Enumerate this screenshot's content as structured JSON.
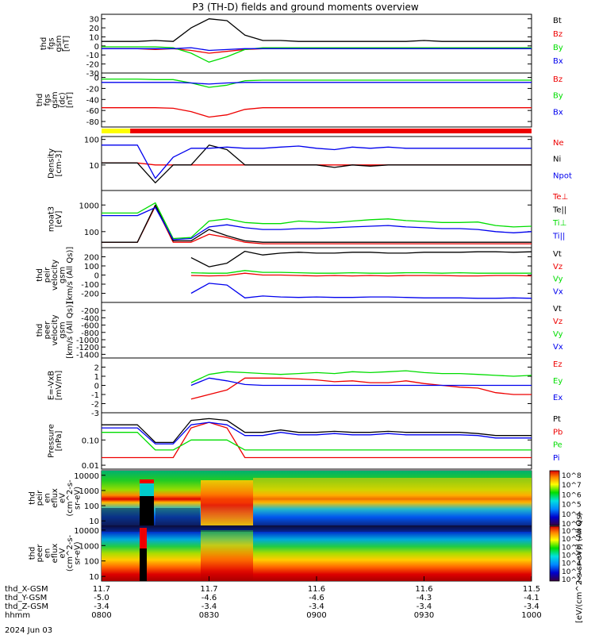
{
  "title": "P3 (TH-D) fields and ground moments overview",
  "date_label": "2024 Jun 03",
  "colors": {
    "black": "#000000",
    "red": "#ee0000",
    "green": "#00dd00",
    "blue": "#0000ee",
    "yellow": "#ffff00"
  },
  "x_axis": {
    "rows": [
      {
        "label": "thd_X-GSM",
        "values": [
          "11.7",
          "11.7",
          "11.6",
          "11.6",
          "11.5"
        ]
      },
      {
        "label": "thd_Y-GSM",
        "values": [
          "-5.0",
          "-4.6",
          "-4.6",
          "-4.3",
          "-4.1"
        ]
      },
      {
        "label": "thd_Z-GSM",
        "values": [
          "-3.4",
          "-3.4",
          "-3.4",
          "-3.4",
          "-3.4"
        ]
      },
      {
        "label": "hhmm",
        "values": [
          "0800",
          "0830",
          "0900",
          "0930",
          "1000"
        ]
      }
    ],
    "time_range": [
      "0800",
      "1000"
    ]
  },
  "status_bar": {
    "segments": [
      {
        "start": "0800",
        "end": "0808",
        "color": "yellow"
      },
      {
        "start": "0808",
        "end": "1000",
        "color": "red"
      }
    ]
  },
  "colorbar": {
    "label": "[eV/(cm^2-s-sr-eV)] (All Qs)",
    "panel1_ticks": [
      "10^8",
      "10^7",
      "10^6",
      "10^5",
      "10^4",
      "10^3"
    ],
    "panel2_ticks": [
      "10^8",
      "10^7",
      "10^6",
      "10^5",
      "10^4",
      "10^3",
      "10^2"
    ]
  },
  "chart_data": [
    {
      "type": "line",
      "ylabel_lines": [
        "thd",
        "fgs",
        "gsm",
        "[nT]"
      ],
      "ylim": [
        -30,
        35
      ],
      "ticks": [
        "30",
        "20",
        "10",
        "0",
        "-10",
        "-20",
        "-30"
      ],
      "series": [
        {
          "name": "Bt",
          "color": "black",
          "values": [
            5,
            5,
            5,
            6,
            5,
            20,
            30,
            28,
            12,
            6,
            6,
            5,
            5,
            5,
            5,
            5,
            5,
            5,
            6,
            5,
            5,
            5,
            5,
            5,
            5
          ]
        },
        {
          "name": "Bz",
          "color": "red",
          "values": [
            -3,
            -3,
            -3,
            -4,
            -3,
            -5,
            -8,
            -6,
            -4,
            -3,
            -3,
            -3,
            -3,
            -3,
            -3,
            -3,
            -3,
            -3,
            -3,
            -3,
            -3,
            -3,
            -3,
            -3,
            -3
          ]
        },
        {
          "name": "By",
          "color": "green",
          "values": [
            -1,
            -1,
            -1,
            -1,
            -2,
            -8,
            -18,
            -12,
            -4,
            -2,
            -2,
            -2,
            -2,
            -2,
            -2,
            -2,
            -2,
            -2,
            -2,
            -2,
            -2,
            -2,
            -2,
            -2,
            -2
          ]
        },
        {
          "name": "Bx",
          "color": "blue",
          "values": [
            -3,
            -3,
            -3,
            -3,
            -3,
            -2,
            -5,
            -4,
            -3,
            -3,
            -3,
            -3,
            -3,
            -3,
            -3,
            -3,
            -3,
            -3,
            -3,
            -3,
            -3,
            -3,
            -3,
            -3,
            -3
          ]
        }
      ]
    },
    {
      "type": "line",
      "ylabel_lines": [
        "thd",
        "fgs",
        "gsm",
        "(dc)",
        "[nT]"
      ],
      "ylim": [
        -90,
        8
      ],
      "ticks": [
        "0",
        "-20",
        "-40",
        "-60",
        "-80"
      ],
      "series": [
        {
          "name": "Bz",
          "color": "red",
          "values": [
            -55,
            -55,
            -55,
            -55,
            -56,
            -62,
            -72,
            -68,
            -58,
            -55,
            -55,
            -55,
            -55,
            -55,
            -55,
            -55,
            -55,
            -55,
            -55,
            -55,
            -55,
            -55,
            -55,
            -55,
            -55
          ]
        },
        {
          "name": "By",
          "color": "green",
          "values": [
            -3,
            -3,
            -3,
            -4,
            -4,
            -10,
            -18,
            -14,
            -6,
            -5,
            -5,
            -5,
            -5,
            -5,
            -5,
            -5,
            -5,
            -5,
            -5,
            -5,
            -5,
            -5,
            -5,
            -5,
            -5
          ]
        },
        {
          "name": "Bx",
          "color": "blue",
          "values": [
            -9,
            -9,
            -9,
            -9,
            -9,
            -10,
            -12,
            -10,
            -9,
            -9,
            -9,
            -9,
            -9,
            -9,
            -9,
            -9,
            -9,
            -9,
            -9,
            -9,
            -9,
            -9,
            -9,
            -9,
            -9
          ]
        }
      ]
    },
    {
      "type": "line",
      "log": true,
      "ylabel_lines": [
        "Density",
        "[cm-3]"
      ],
      "ylim": [
        1,
        130
      ],
      "ticks": [
        "100",
        "10"
      ],
      "series": [
        {
          "name": "Ne",
          "color": "red",
          "values": [
            12,
            12,
            12,
            10,
            10,
            10,
            10,
            10,
            10,
            10,
            10,
            10,
            10,
            10,
            10,
            10,
            10,
            10,
            10,
            10,
            10,
            10,
            10,
            10,
            10
          ]
        },
        {
          "name": "Ni",
          "color": "black",
          "values": [
            12,
            12,
            12,
            2,
            10,
            10,
            60,
            40,
            10,
            10,
            10,
            10,
            10,
            8,
            10,
            9,
            10,
            10,
            10,
            10,
            10,
            10,
            10,
            10,
            10
          ]
        },
        {
          "name": "Npot",
          "color": "blue",
          "values": [
            60,
            60,
            60,
            3,
            20,
            45,
            45,
            50,
            45,
            45,
            50,
            55,
            45,
            40,
            50,
            45,
            50,
            45,
            45,
            45,
            45,
            45,
            45,
            45,
            45
          ]
        }
      ]
    },
    {
      "type": "line",
      "log": true,
      "ylabel_lines": [
        "moat3",
        "[eV]"
      ],
      "ylim": [
        25,
        3500
      ],
      "ticks": [
        "1000",
        "100"
      ],
      "series": [
        {
          "name": "Te⊥",
          "color": "red",
          "values": [
            40,
            40,
            40,
            900,
            40,
            40,
            80,
            60,
            40,
            35,
            35,
            35,
            35,
            35,
            35,
            35,
            35,
            35,
            35,
            35,
            35,
            35,
            35,
            35,
            35
          ]
        },
        {
          "name": "Te||",
          "color": "black",
          "values": [
            40,
            40,
            40,
            1000,
            45,
            45,
            120,
            70,
            45,
            40,
            40,
            40,
            40,
            40,
            40,
            40,
            40,
            40,
            40,
            40,
            40,
            40,
            40,
            40,
            40
          ]
        },
        {
          "name": "Ti⊥",
          "color": "green",
          "values": [
            500,
            500,
            500,
            1200,
            55,
            60,
            250,
            300,
            220,
            200,
            200,
            250,
            230,
            220,
            250,
            280,
            300,
            260,
            240,
            220,
            220,
            230,
            170,
            150,
            160
          ]
        },
        {
          "name": "Ti||",
          "color": "blue",
          "values": [
            400,
            400,
            400,
            800,
            50,
            55,
            150,
            180,
            140,
            120,
            120,
            130,
            130,
            140,
            150,
            160,
            170,
            150,
            140,
            130,
            130,
            120,
            100,
            90,
            100
          ]
        }
      ]
    },
    {
      "type": "line",
      "ylabel_lines": [
        "thd",
        "peir",
        "velocity",
        "gsm",
        "[km/s (All Qs)]"
      ],
      "ylim": [
        -300,
        300
      ],
      "ticks": [
        "200",
        "100",
        "0",
        "-100",
        "-200"
      ],
      "start_index": 5,
      "series": [
        {
          "name": "Vt",
          "color": "black",
          "values": [
            null,
            null,
            null,
            null,
            null,
            190,
            90,
            130,
            260,
            220,
            240,
            250,
            240,
            240,
            250,
            250,
            240,
            240,
            250,
            250,
            250,
            255,
            255,
            250,
            255
          ]
        },
        {
          "name": "Vz",
          "color": "red",
          "values": [
            null,
            null,
            null,
            null,
            null,
            -5,
            -10,
            -5,
            20,
            0,
            0,
            -5,
            -10,
            -5,
            -10,
            -5,
            -10,
            -5,
            -5,
            -5,
            -10,
            -10,
            -5,
            -5,
            -10
          ]
        },
        {
          "name": "Vy",
          "color": "green",
          "values": [
            null,
            null,
            null,
            null,
            null,
            25,
            20,
            20,
            50,
            30,
            30,
            25,
            20,
            20,
            25,
            20,
            20,
            25,
            25,
            20,
            25,
            20,
            20,
            20,
            20
          ]
        },
        {
          "name": "Vx",
          "color": "blue",
          "values": [
            null,
            null,
            null,
            null,
            null,
            -200,
            -90,
            -110,
            -250,
            -230,
            -240,
            -245,
            -240,
            -245,
            -245,
            -240,
            -240,
            -245,
            -250,
            -250,
            -250,
            -255,
            -255,
            -250,
            -255
          ]
        }
      ]
    },
    {
      "type": "line",
      "ylabel_lines": [
        "thd",
        "peer",
        "velocity",
        "gsm",
        "[km/s (All Qs)]"
      ],
      "ylim": [
        -1500,
        20
      ],
      "ticks": [
        "-200",
        "-400",
        "-600",
        "-800",
        "-1000",
        "-1200",
        "-1400"
      ],
      "series": [
        {
          "name": "Vt",
          "color": "black",
          "values": []
        },
        {
          "name": "Vz",
          "color": "red",
          "values": []
        },
        {
          "name": "Vy",
          "color": "green",
          "values": []
        },
        {
          "name": "Vx",
          "color": "blue",
          "values": []
        }
      ]
    },
    {
      "type": "line",
      "ylabel_lines": [
        "E=-VxB",
        "[mV/m]"
      ],
      "ylim": [
        -3,
        3
      ],
      "ticks": [
        "2",
        "1",
        "0",
        "-1",
        "-2",
        "-3"
      ],
      "series": [
        {
          "name": "Ez",
          "color": "red",
          "values": [
            null,
            null,
            null,
            null,
            null,
            -1.5,
            -1.0,
            -0.5,
            0.8,
            0.8,
            0.8,
            0.7,
            0.6,
            0.4,
            0.5,
            0.3,
            0.3,
            0.5,
            0.2,
            0.0,
            -0.2,
            -0.3,
            -0.8,
            -1.0,
            -1.0
          ]
        },
        {
          "name": "Ey",
          "color": "green",
          "values": [
            null,
            null,
            null,
            null,
            null,
            0.3,
            1.2,
            1.5,
            1.4,
            1.3,
            1.2,
            1.3,
            1.4,
            1.3,
            1.5,
            1.4,
            1.5,
            1.6,
            1.4,
            1.3,
            1.3,
            1.2,
            1.1,
            1.0,
            1.1
          ]
        },
        {
          "name": "Ex",
          "color": "blue",
          "values": [
            null,
            null,
            null,
            null,
            null,
            0.0,
            0.8,
            0.5,
            0.1,
            0.0,
            0.0,
            0.0,
            0.0,
            0.0,
            0.0,
            0.0,
            0.0,
            0.0,
            0.0,
            0.0,
            0.0,
            0.0,
            0.0,
            0.0,
            0.0
          ]
        }
      ]
    },
    {
      "type": "line",
      "log": true,
      "ylabel_lines": [
        "Pressure",
        "[nPa]"
      ],
      "ylim": [
        0.007,
        1.2
      ],
      "ticks": [
        "0.10",
        "0.01"
      ],
      "series": [
        {
          "name": "Pt",
          "color": "black",
          "values": [
            0.4,
            0.4,
            0.4,
            0.08,
            0.08,
            0.6,
            0.7,
            0.6,
            0.2,
            0.2,
            0.25,
            0.2,
            0.2,
            0.22,
            0.2,
            0.2,
            0.22,
            0.2,
            0.2,
            0.2,
            0.2,
            0.18,
            0.15,
            0.15,
            0.15
          ]
        },
        {
          "name": "Pb",
          "color": "red",
          "values": [
            0.02,
            0.02,
            0.02,
            0.02,
            0.02,
            0.3,
            0.5,
            0.3,
            0.02,
            0.02,
            0.02,
            0.02,
            0.02,
            0.02,
            0.02,
            0.02,
            0.02,
            0.02,
            0.02,
            0.02,
            0.02,
            0.02,
            0.02,
            0.02,
            0.02
          ]
        },
        {
          "name": "Pe",
          "color": "green",
          "values": [
            0.2,
            0.2,
            0.2,
            0.04,
            0.04,
            0.1,
            0.1,
            0.1,
            0.04,
            0.04,
            0.04,
            0.04,
            0.04,
            0.04,
            0.04,
            0.04,
            0.04,
            0.04,
            0.04,
            0.04,
            0.04,
            0.04,
            0.04,
            0.04,
            0.04
          ]
        },
        {
          "name": "Pi",
          "color": "blue",
          "values": [
            0.3,
            0.3,
            0.3,
            0.07,
            0.07,
            0.4,
            0.5,
            0.4,
            0.15,
            0.15,
            0.2,
            0.16,
            0.16,
            0.18,
            0.16,
            0.16,
            0.18,
            0.16,
            0.16,
            0.16,
            0.16,
            0.15,
            0.12,
            0.12,
            0.12
          ]
        }
      ]
    },
    {
      "type": "heatmap",
      "ylabel_lines": [
        "thd",
        "peir",
        "en",
        "eflux",
        "eV",
        "(cm^2-s-",
        "sr-eV)"
      ],
      "ylim": [
        5,
        20000
      ],
      "ticks": [
        "10000",
        "1000",
        "100",
        "10"
      ]
    },
    {
      "type": "heatmap",
      "ylabel_lines": [
        "thd",
        "peer",
        "en",
        "eflux",
        "eV",
        "(cm^2-s-",
        "sr-eV)"
      ],
      "ylim": [
        5,
        20000
      ],
      "ticks": [
        "10000",
        "1000",
        "100",
        "10"
      ]
    }
  ]
}
